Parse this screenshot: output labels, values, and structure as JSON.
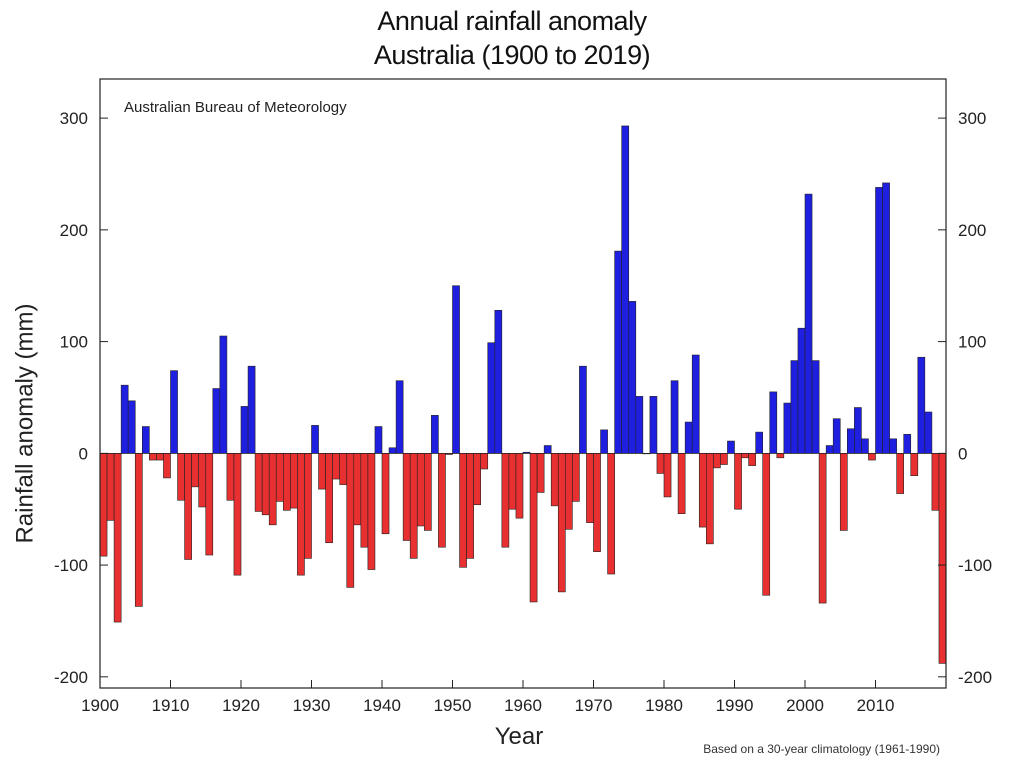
{
  "chart_data": {
    "type": "bar",
    "title": "Annual rainfall anomaly",
    "subtitle": "Australia (1900 to 2019)",
    "xlabel": "Year",
    "ylabel": "Rainfall anomaly (mm)",
    "credit": "Australian Bureau of Meteorology",
    "note": "Based on a 30-year climatology (1961-1990)",
    "xlim": [
      1900,
      2020
    ],
    "ylim": [
      -210,
      335
    ],
    "x_ticks": [
      1900,
      1910,
      1920,
      1930,
      1940,
      1950,
      1960,
      1970,
      1980,
      1990,
      2000,
      2010
    ],
    "y_ticks": [
      -200,
      -100,
      0,
      100,
      200,
      300
    ],
    "positive_color": "#1f1fe0",
    "negative_color": "#e83030",
    "grid": false,
    "legend": "none",
    "x": [
      1900,
      1901,
      1902,
      1903,
      1904,
      1905,
      1906,
      1907,
      1908,
      1909,
      1910,
      1911,
      1912,
      1913,
      1914,
      1915,
      1916,
      1917,
      1918,
      1919,
      1920,
      1921,
      1922,
      1923,
      1924,
      1925,
      1926,
      1927,
      1928,
      1929,
      1930,
      1931,
      1932,
      1933,
      1934,
      1935,
      1936,
      1937,
      1938,
      1939,
      1940,
      1941,
      1942,
      1943,
      1944,
      1945,
      1946,
      1947,
      1948,
      1949,
      1950,
      1951,
      1952,
      1953,
      1954,
      1955,
      1956,
      1957,
      1958,
      1959,
      1960,
      1961,
      1962,
      1963,
      1964,
      1965,
      1966,
      1967,
      1968,
      1969,
      1970,
      1971,
      1972,
      1973,
      1974,
      1975,
      1976,
      1977,
      1978,
      1979,
      1980,
      1981,
      1982,
      1983,
      1984,
      1985,
      1986,
      1987,
      1988,
      1989,
      1990,
      1991,
      1992,
      1993,
      1994,
      1995,
      1996,
      1997,
      1998,
      1999,
      2000,
      2001,
      2002,
      2003,
      2004,
      2005,
      2006,
      2007,
      2008,
      2009,
      2010,
      2011,
      2012,
      2013,
      2014,
      2015,
      2016,
      2017,
      2018,
      2019
    ],
    "values": [
      -92,
      -60,
      -151,
      61,
      47,
      -137,
      24,
      -6,
      -6,
      -22,
      74,
      -42,
      -95,
      -30,
      -48,
      -91,
      58,
      105,
      -42,
      -109,
      42,
      78,
      -52,
      -55,
      -64,
      -43,
      -51,
      -49,
      -109,
      -94,
      25,
      -32,
      -80,
      -23,
      -28,
      -120,
      -64,
      -84,
      -104,
      24,
      -72,
      5,
      65,
      -78,
      -94,
      -65,
      -69,
      34,
      -84,
      -1,
      150,
      -102,
      -94,
      -46,
      -14,
      99,
      128,
      -84,
      -50,
      -58,
      1,
      -133,
      -35,
      7,
      -47,
      -124,
      -68,
      -43,
      78,
      -62,
      -88,
      21,
      -108,
      181,
      293,
      136,
      51,
      0,
      51,
      -18,
      -39,
      65,
      -54,
      28,
      88,
      -66,
      -81,
      -13,
      -10,
      11,
      -50,
      -4,
      -11,
      19,
      -127,
      55,
      -4,
      45,
      83,
      112,
      232,
      83,
      -134,
      7,
      31,
      -69,
      22,
      41,
      13,
      -6,
      238,
      242,
      13,
      -36,
      17,
      -20,
      86,
      37,
      -51,
      -188
    ]
  }
}
